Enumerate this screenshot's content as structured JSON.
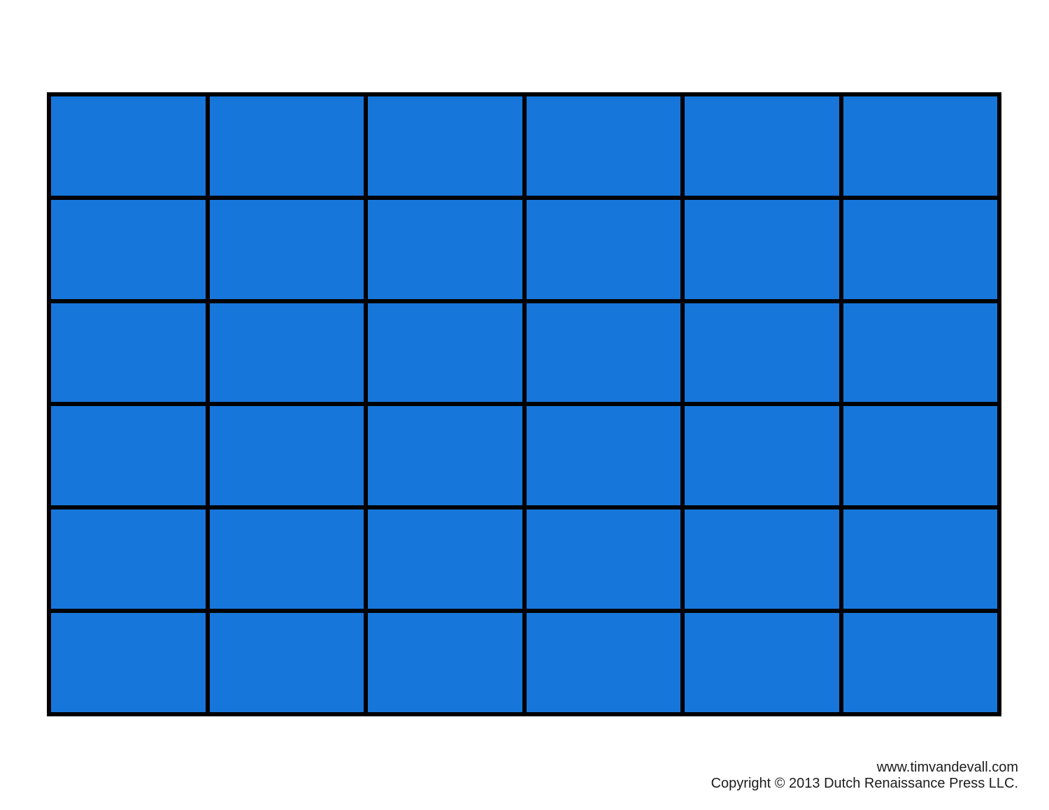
{
  "grid": {
    "rows": 6,
    "cols": 6,
    "cell_count": 36,
    "cell_color": "#1776DA",
    "line_color": "#000000",
    "background_color": "#FFFFFF"
  },
  "footer": {
    "website": "www.timvandevall.com",
    "copyright": "Copyright © 2013 Dutch Renaissance Press LLC."
  }
}
